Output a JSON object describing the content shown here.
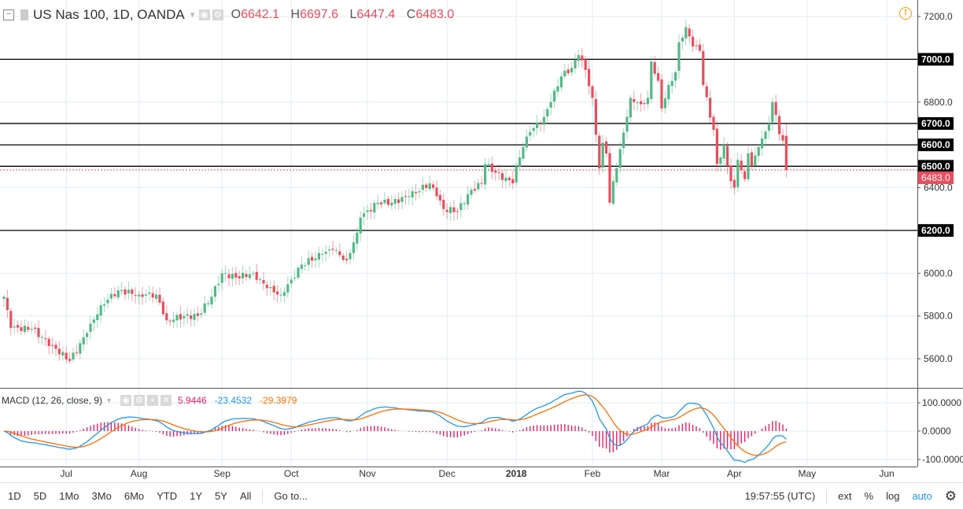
{
  "header": {
    "symbol": "US Nas 100, 1D, OANDA",
    "o_label": "O",
    "o": "6642.1",
    "h_label": "H",
    "h": "6697.6",
    "l_label": "L",
    "l": "6447.4",
    "c_label": "C",
    "c": "6483.0"
  },
  "macd_legend": {
    "label": "MACD (12, 26, close, 9)",
    "hist": "5.9446",
    "macd": "-23.4532",
    "signal": "-29.3979"
  },
  "colors": {
    "up": "#53b987",
    "down": "#eb4d5c",
    "macd": "#2196f3",
    "signal": "#ff6d00",
    "hist": "#e91e63"
  },
  "chart_data": {
    "type": "candlestick",
    "price_ticks": [
      "7200.0",
      "6800.0",
      "6400.0",
      "6000.0",
      "5800.0",
      "5600.0"
    ],
    "price_tick_values": [
      7200,
      6800,
      6400,
      6000,
      5800,
      5600
    ],
    "ylim": [
      5470,
      7250
    ],
    "macd_ticks": [
      "100.0000",
      "0.0000",
      "-100.0000"
    ],
    "macd_tick_values": [
      100,
      0,
      -100
    ],
    "months": [
      "Jul",
      "Aug",
      "Sep",
      "Oct",
      "Nov",
      "Dec",
      "2018",
      "Feb",
      "Mar",
      "Apr",
      "May",
      "Jun"
    ],
    "month_bar_index": [
      18,
      39,
      63,
      83,
      105,
      128,
      148,
      170,
      190,
      211,
      232,
      255
    ],
    "horizontal_levels": [
      {
        "value": 7000,
        "label": "7000.0"
      },
      {
        "value": 6700,
        "label": "6700.0"
      },
      {
        "value": 6600,
        "label": "6600.0"
      },
      {
        "value": 6500,
        "label": "6500.0"
      },
      {
        "value": 6200,
        "label": "6200.0"
      }
    ],
    "last_price": {
      "value": 6483,
      "label": "6483.0"
    },
    "last_bar": {
      "open": 6642.1,
      "high": 6697.6,
      "low": 6447.4,
      "close": 6483.0
    },
    "close_anchors": [
      [
        0,
        5890
      ],
      [
        2,
        5744
      ],
      [
        8,
        5740
      ],
      [
        14,
        5660
      ],
      [
        19,
        5590
      ],
      [
        24,
        5720
      ],
      [
        28,
        5850
      ],
      [
        33,
        5920
      ],
      [
        39,
        5900
      ],
      [
        44,
        5900
      ],
      [
        47,
        5780
      ],
      [
        52,
        5800
      ],
      [
        56,
        5800
      ],
      [
        60,
        5890
      ],
      [
        63,
        6000
      ],
      [
        67,
        5980
      ],
      [
        72,
        6000
      ],
      [
        76,
        5930
      ],
      [
        80,
        5900
      ],
      [
        83,
        5970
      ],
      [
        86,
        6040
      ],
      [
        92,
        6090
      ],
      [
        95,
        6110
      ],
      [
        99,
        6060
      ],
      [
        102,
        6190
      ],
      [
        103,
        6260
      ],
      [
        108,
        6330
      ],
      [
        112,
        6330
      ],
      [
        117,
        6360
      ],
      [
        123,
        6420
      ],
      [
        125,
        6360
      ],
      [
        127,
        6300
      ],
      [
        131,
        6290
      ],
      [
        135,
        6390
      ],
      [
        138,
        6420
      ],
      [
        139,
        6510
      ],
      [
        142,
        6470
      ],
      [
        147,
        6420
      ],
      [
        148,
        6500
      ],
      [
        150,
        6590
      ],
      [
        152,
        6660
      ],
      [
        156,
        6730
      ],
      [
        158,
        6800
      ],
      [
        161,
        6920
      ],
      [
        164,
        6960
      ],
      [
        166,
        7020
      ],
      [
        168,
        6950
      ],
      [
        170,
        6820
      ],
      [
        172,
        6490
      ],
      [
        173,
        6610
      ],
      [
        174,
        6560
      ],
      [
        175,
        6330
      ],
      [
        176,
        6430
      ],
      [
        178,
        6580
      ],
      [
        181,
        6820
      ],
      [
        184,
        6790
      ],
      [
        186,
        6820
      ],
      [
        187,
        6990
      ],
      [
        189,
        6900
      ],
      [
        190,
        6770
      ],
      [
        192,
        6880
      ],
      [
        194,
        6940
      ],
      [
        195,
        7080
      ],
      [
        197,
        7150
      ],
      [
        199,
        7060
      ],
      [
        201,
        7040
      ],
      [
        202,
        6880
      ],
      [
        205,
        6670
      ],
      [
        206,
        6510
      ],
      [
        208,
        6600
      ],
      [
        209,
        6500
      ],
      [
        210,
        6430
      ],
      [
        211,
        6400
      ],
      [
        212,
        6530
      ],
      [
        214,
        6440
      ],
      [
        215,
        6560
      ],
      [
        216,
        6500
      ],
      [
        218,
        6590
      ],
      [
        219,
        6630
      ],
      [
        221,
        6700
      ],
      [
        222,
        6800
      ],
      [
        223,
        6740
      ],
      [
        224,
        6650
      ],
      [
        225,
        6620
      ],
      [
        226,
        6483
      ]
    ]
  },
  "toolbar": {
    "ranges": [
      "1D",
      "5D",
      "1Mo",
      "3Mo",
      "6Mo",
      "YTD",
      "1Y",
      "5Y",
      "All"
    ],
    "goto": "Go to...",
    "time": "19:57:55 (UTC)",
    "ext": "ext",
    "pct": "%",
    "log": "log",
    "auto": "auto"
  },
  "icons": {
    "warning": "!",
    "close": "✕",
    "plus": "+",
    "settings": "⚙"
  }
}
